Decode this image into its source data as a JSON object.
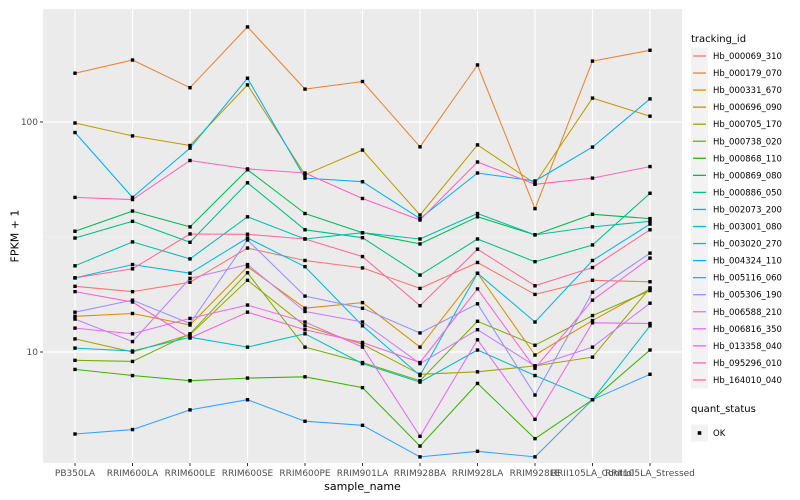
{
  "chart_data": {
    "type": "line",
    "title": "",
    "xlabel": "sample_name",
    "ylabel": "FPKM + 1",
    "y_scale": "log10",
    "y_ticks": [
      10,
      100
    ],
    "y_minor_ticks": [
      31.62
    ],
    "ylim": [
      3.3,
      310
    ],
    "grid": true,
    "legend_position": "right",
    "panel_bg": "#EBEBEB",
    "grid_color": "#FFFFFF",
    "tick_color": "#333333",
    "tick_label_color": "#4D4D4D",
    "point_color": "#000000",
    "point_shape": "square",
    "categories": [
      "PB350LA",
      "RRIM600LA",
      "RRIM600LE",
      "RRIM600SE",
      "RRIM600PE",
      "RRIM901LA",
      "RRIM928BA",
      "RRIM928LA",
      "RRIM928LE",
      "RRII105LA_Control",
      "RRII105LA_Stressed"
    ],
    "series": [
      {
        "name": "Hb_000069_310",
        "color": "#F8766D",
        "values": [
          19.3,
          18.3,
          20.1,
          28.3,
          25,
          23.2,
          18.9,
          24.5,
          17.8,
          20.5,
          20.2
        ]
      },
      {
        "name": "Hb_000179_070",
        "color": "#EA8331",
        "values": [
          163,
          186,
          141,
          259,
          139,
          150,
          78,
          177,
          42,
          184,
          205
        ]
      },
      {
        "name": "Hb_000331_670",
        "color": "#D89000",
        "values": [
          14.3,
          14.7,
          13.1,
          23.5,
          15.5,
          16.4,
          10.5,
          22,
          9.7,
          13.7,
          18.8
        ]
      },
      {
        "name": "Hb_000696_090",
        "color": "#C09B00",
        "values": [
          99,
          87,
          79,
          145,
          59,
          75.5,
          39.4,
          79.5,
          54,
          127,
          106
        ]
      },
      {
        "name": "Hb_000705_170",
        "color": "#A3A500",
        "values": [
          11.4,
          10,
          11.9,
          20.5,
          13,
          10.8,
          8,
          8.2,
          8.7,
          9.5,
          19
        ]
      },
      {
        "name": "Hb_000738_020",
        "color": "#7CAE00",
        "values": [
          9.2,
          9.1,
          12,
          22.1,
          10.5,
          9,
          7.5,
          13.6,
          10.7,
          14.4,
          18.5
        ]
      },
      {
        "name": "Hb_000868_110",
        "color": "#39B600",
        "values": [
          8.4,
          7.9,
          7.5,
          7.7,
          7.8,
          7,
          3.9,
          7.3,
          4.2,
          6.2,
          10.2
        ]
      },
      {
        "name": "Hb_000869_080",
        "color": "#00BB4E",
        "values": [
          33.5,
          41,
          35,
          62,
          40,
          33,
          29.5,
          38.7,
          32.3,
          39.7,
          38
        ]
      },
      {
        "name": "Hb_000886_050",
        "color": "#00C087",
        "values": [
          31.3,
          37,
          30,
          54.4,
          34,
          31.4,
          21.6,
          31,
          24.7,
          29.2,
          49
        ]
      },
      {
        "name": "Hb_002073_200",
        "color": "#00C1A9",
        "values": [
          23.7,
          30.1,
          25.4,
          38.7,
          31,
          33,
          31,
          40,
          32.3,
          35,
          37
        ]
      },
      {
        "name": "Hb_003001_080",
        "color": "#00BFC4",
        "values": [
          10.4,
          10.1,
          11.6,
          10.5,
          12,
          8.9,
          7.4,
          10.2,
          7.9,
          6.2,
          13
        ]
      },
      {
        "name": "Hb_003020_270",
        "color": "#00BAE0",
        "values": [
          21,
          24,
          22,
          31.3,
          23.5,
          13,
          7.9,
          22,
          13.5,
          25,
          36
        ]
      },
      {
        "name": "Hb_004324_110",
        "color": "#00B0F6",
        "values": [
          90,
          47,
          77,
          155,
          57,
          55,
          38,
          60,
          55.4,
          77.8,
          126
        ]
      },
      {
        "name": "Hb_005116_060",
        "color": "#35A2FF",
        "values": [
          4.4,
          4.6,
          5.6,
          6.2,
          5,
          4.8,
          3.5,
          3.7,
          3.5,
          6.2,
          8
        ]
      },
      {
        "name": "Hb_005306_190",
        "color": "#9590FF",
        "values": [
          14.9,
          16.8,
          13.3,
          30.7,
          17.5,
          15.5,
          12.1,
          16.2,
          6.5,
          18.2,
          26.9
        ]
      },
      {
        "name": "Hb_006588_210",
        "color": "#C77CFF",
        "values": [
          13.9,
          11.1,
          20.9,
          24,
          15,
          13.5,
          8.9,
          12.5,
          8.7,
          10.5,
          16.3
        ]
      },
      {
        "name": "Hb_006816_350",
        "color": "#E76BF3",
        "values": [
          12.7,
          12,
          14,
          16,
          13.5,
          10.5,
          4.3,
          11.3,
          5.1,
          13.4,
          13.3
        ]
      },
      {
        "name": "Hb_013358_040",
        "color": "#FB61D7",
        "values": [
          18.3,
          16.5,
          11.5,
          14.9,
          12.5,
          11,
          9,
          18.8,
          8.5,
          16.8,
          25.6
        ]
      },
      {
        "name": "Hb_095296_010",
        "color": "#FF62BC",
        "values": [
          47,
          46,
          68,
          62.5,
          60,
          46.5,
          37.5,
          67,
          53.6,
          57,
          64
        ]
      },
      {
        "name": "Hb_164010_040",
        "color": "#FF6A98",
        "values": [
          21,
          23,
          32.6,
          32.5,
          31,
          26,
          15.9,
          28,
          19.4,
          23.3,
          34
        ]
      }
    ],
    "legend": {
      "tracking_title": "tracking_id",
      "quant_title": "quant_status",
      "quant_items": [
        {
          "label": "OK",
          "marker": "black-square"
        }
      ],
      "key_bg": "#F2F2F2"
    }
  }
}
